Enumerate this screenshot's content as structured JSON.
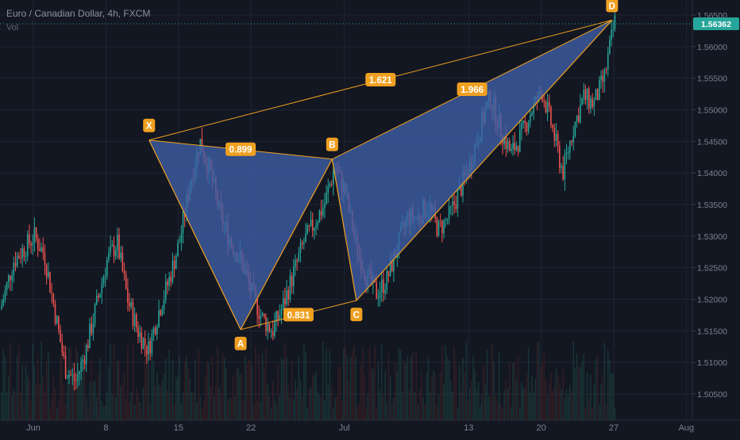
{
  "header": {
    "title": "Euro / Canadian Dollar, 4h, FXCM",
    "volume_label": "Vol"
  },
  "colors": {
    "background": "#131722",
    "grid": "#1f2433",
    "up_candle": "#26a69a",
    "down_candle": "#ef5350",
    "pattern_fill": "#3d5fa8",
    "pattern_line": "#f0a020",
    "label_bg": "#f0a020",
    "axis_text": "#7b8090",
    "current_price_bg": "#26a69a"
  },
  "chart_data": {
    "type": "candlestick",
    "title": "Euro / Canadian Dollar, 4h, FXCM",
    "x_tick_labels": [
      "Jun",
      "8",
      "15",
      "22",
      "Jul",
      "13",
      "20",
      "27",
      "Aug"
    ],
    "y_tick_labels": [
      "1.56500",
      "1.56000",
      "1.55500",
      "1.55000",
      "1.54500",
      "1.54000",
      "1.53500",
      "1.53000",
      "1.52500",
      "1.52000",
      "1.51500",
      "1.51000",
      "1.50500"
    ],
    "y_ticks": [
      1.565,
      1.56,
      1.555,
      1.55,
      1.545,
      1.54,
      1.535,
      1.53,
      1.525,
      1.52,
      1.515,
      1.51,
      1.505
    ],
    "y_range": [
      1.5028,
      1.5672
    ],
    "current_price": "1.56362",
    "current_price_value": 1.56362,
    "price_path": [
      [
        "2020-05-28",
        1.513
      ],
      [
        "2020-05-29",
        1.52
      ],
      [
        "2020-05-30",
        1.526
      ],
      [
        "2020-06-01",
        1.53
      ],
      [
        "2020-06-02",
        1.527
      ],
      [
        "2020-06-03",
        1.518
      ],
      [
        "2020-06-04",
        1.509
      ],
      [
        "2020-06-05",
        1.507
      ],
      [
        "2020-06-06",
        1.512
      ],
      [
        "2020-06-07",
        1.519
      ],
      [
        "2020-06-08",
        1.526
      ],
      [
        "2020-06-09",
        1.529
      ],
      [
        "2020-06-10",
        1.52
      ],
      [
        "2020-06-11",
        1.515
      ],
      [
        "2020-06-12",
        1.512
      ],
      [
        "2020-06-13",
        1.518
      ],
      [
        "2020-06-14",
        1.523
      ],
      [
        "2020-06-15",
        1.529
      ],
      [
        "2020-06-16",
        1.538
      ],
      [
        "2020-06-17",
        1.545
      ],
      [
        "2020-06-18",
        1.54
      ],
      [
        "2020-06-19",
        1.533
      ],
      [
        "2020-06-20",
        1.529
      ],
      [
        "2020-06-21",
        1.526
      ],
      [
        "2020-06-22",
        1.521
      ],
      [
        "2020-06-23",
        1.517
      ],
      [
        "2020-06-24",
        1.515
      ],
      [
        "2020-06-25",
        1.519
      ],
      [
        "2020-06-26",
        1.524
      ],
      [
        "2020-06-27",
        1.529
      ],
      [
        "2020-06-28",
        1.532
      ],
      [
        "2020-06-29",
        1.535
      ],
      [
        "2020-06-30",
        1.541
      ],
      [
        "2020-07-01",
        1.537
      ],
      [
        "2020-07-02",
        1.529
      ],
      [
        "2020-07-03",
        1.524
      ],
      [
        "2020-07-04",
        1.521
      ],
      [
        "2020-07-05",
        1.523
      ],
      [
        "2020-07-06",
        1.528
      ],
      [
        "2020-07-07",
        1.533
      ],
      [
        "2020-07-08",
        1.533
      ],
      [
        "2020-07-09",
        1.535
      ],
      [
        "2020-07-10",
        1.531
      ],
      [
        "2020-07-11",
        1.533
      ],
      [
        "2020-07-12",
        1.537
      ],
      [
        "2020-07-13",
        1.541
      ],
      [
        "2020-07-14",
        1.547
      ],
      [
        "2020-07-15",
        1.552
      ],
      [
        "2020-07-16",
        1.547
      ],
      [
        "2020-07-17",
        1.543
      ],
      [
        "2020-07-18",
        1.546
      ],
      [
        "2020-07-19",
        1.55
      ],
      [
        "2020-07-20",
        1.553
      ],
      [
        "2020-07-21",
        1.547
      ],
      [
        "2020-07-22",
        1.54
      ],
      [
        "2020-07-23",
        1.547
      ],
      [
        "2020-07-24",
        1.552
      ],
      [
        "2020-07-25",
        1.551
      ],
      [
        "2020-07-26",
        1.555
      ],
      [
        "2020-07-27",
        1.564
      ]
    ],
    "harmonic_pattern": {
      "points": [
        {
          "label": "X",
          "date": "2020-06-12T04:00",
          "price": 1.5452
        },
        {
          "label": "A",
          "date": "2020-06-21T00:00",
          "price": 1.5152
        },
        {
          "label": "B",
          "date": "2020-06-29T20:00",
          "price": 1.5422
        },
        {
          "label": "C",
          "date": "2020-07-02T04:00",
          "price": 1.5198
        },
        {
          "label": "D",
          "date": "2020-07-26T20:00",
          "price": 1.5642
        }
      ],
      "ratios": [
        {
          "from": "X",
          "to": "B",
          "value": "0.899"
        },
        {
          "from": "A",
          "to": "C",
          "value": "0.831"
        },
        {
          "from": "X",
          "to": "D",
          "value": "1.621"
        },
        {
          "from": "B",
          "to": "D",
          "value": "1.966"
        }
      ]
    }
  }
}
